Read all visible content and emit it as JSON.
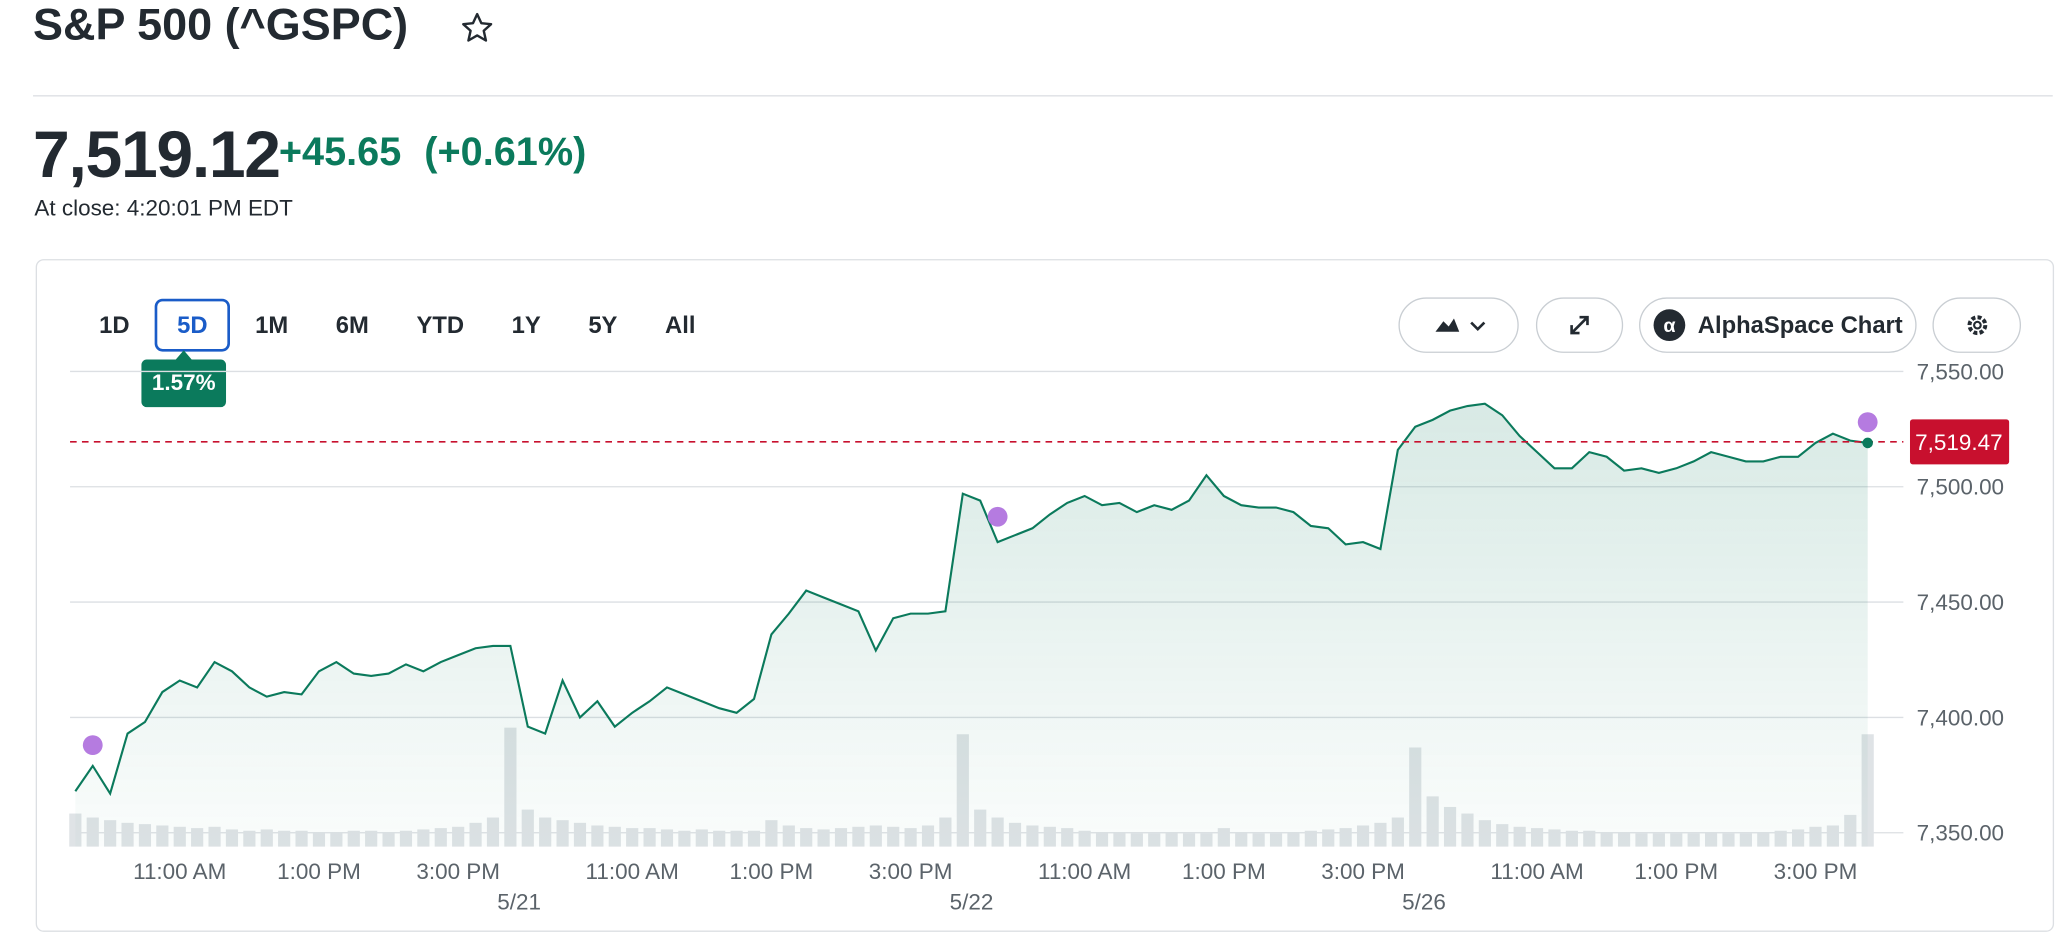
{
  "header": {
    "title": "S&P 500 (^GSPC)",
    "price": "7,519.12",
    "change": "+45.65",
    "change_percent": "(+0.61%)",
    "market_status": "At close: 4:20:01 PM EDT"
  },
  "toolbar": {
    "ranges": [
      "1D",
      "5D",
      "1M",
      "6M",
      "YTD",
      "1Y",
      "5Y",
      "All"
    ],
    "selected_range": 1,
    "range_change": "1.57%",
    "chart_button": "AlphaSpace Chart"
  },
  "chart_data": {
    "type": "area",
    "color": "#0b7a5c",
    "volume_color": "#dfe3e6",
    "grid": true,
    "xlim": [
      0,
      103
    ],
    "ylim": [
      7344,
      7550
    ],
    "yticks": [
      {
        "value": 7350,
        "label": "7,350.00"
      },
      {
        "value": 7400,
        "label": "7,400.00"
      },
      {
        "value": 7450,
        "label": "7,450.00"
      },
      {
        "value": 7500,
        "label": "7,500.00"
      },
      {
        "value": 7550,
        "label": "7,550.00"
      }
    ],
    "xticks": [
      {
        "value": 6,
        "label": "11:00 AM"
      },
      {
        "value": 14,
        "label": "1:00 PM"
      },
      {
        "value": 22,
        "label": "3:00 PM"
      },
      {
        "value": 32,
        "label": "11:00 AM"
      },
      {
        "value": 40,
        "label": "1:00 PM"
      },
      {
        "value": 48,
        "label": "3:00 PM"
      },
      {
        "value": 58,
        "label": "11:00 AM"
      },
      {
        "value": 66,
        "label": "1:00 PM"
      },
      {
        "value": 74,
        "label": "3:00 PM"
      },
      {
        "value": 84,
        "label": "11:00 AM"
      },
      {
        "value": 92,
        "label": "1:00 PM"
      },
      {
        "value": 100,
        "label": "3:00 PM"
      }
    ],
    "date_ticks": [
      {
        "value": 25.5,
        "label": "5/21"
      },
      {
        "value": 51.5,
        "label": "5/22"
      },
      {
        "value": 77.5,
        "label": "5/26"
      }
    ],
    "values": [
      7368,
      7379,
      7367,
      7393,
      7398,
      7411,
      7416,
      7413,
      7424,
      7420,
      7413,
      7409,
      7411,
      7410,
      7420,
      7424,
      7419,
      7418,
      7419,
      7423,
      7420,
      7424,
      7427,
      7430,
      7431,
      7431,
      7396,
      7393,
      7416,
      7400,
      7407,
      7396,
      7402,
      7407,
      7413,
      7410,
      7407,
      7404,
      7402,
      7408,
      7436,
      7445,
      7455,
      7452,
      7449,
      7446,
      7429,
      7443,
      7445,
      7445,
      7446,
      7497,
      7494,
      7476,
      7479,
      7482,
      7488,
      7493,
      7496,
      7492,
      7493,
      7489,
      7492,
      7490,
      7494,
      7505,
      7496,
      7492,
      7491,
      7491,
      7489,
      7483,
      7482,
      7475,
      7476,
      7473,
      7516,
      7526,
      7529,
      7533,
      7535,
      7536,
      7531,
      7522,
      7515,
      7508,
      7508,
      7515,
      7513,
      7507,
      7508,
      7506,
      7508,
      7511,
      7515,
      7513,
      7511,
      7511,
      7513,
      7513,
      7519,
      7523,
      7520,
      7519
    ],
    "volume": [
      25,
      22,
      20,
      18,
      17,
      16,
      15,
      14,
      15,
      13,
      12,
      13,
      12,
      12,
      11,
      11,
      12,
      12,
      11,
      12,
      13,
      14,
      15,
      18,
      22,
      90,
      28,
      22,
      20,
      18,
      16,
      15,
      14,
      14,
      13,
      12,
      13,
      12,
      12,
      12,
      20,
      16,
      14,
      13,
      14,
      15,
      16,
      15,
      14,
      16,
      22,
      85,
      28,
      22,
      18,
      16,
      15,
      14,
      12,
      11,
      11,
      10,
      10,
      11,
      10,
      10,
      14,
      11,
      10,
      10,
      11,
      12,
      13,
      14,
      16,
      18,
      22,
      75,
      38,
      30,
      25,
      20,
      17,
      15,
      14,
      13,
      12,
      12,
      11,
      11,
      10,
      10,
      10,
      10,
      11,
      10,
      10,
      11,
      12,
      13,
      15,
      16,
      24,
      85
    ],
    "reference_line": {
      "value": 7519.47,
      "label": "7,519.47",
      "color": "#c8102e"
    },
    "events": [
      {
        "x": 1,
        "y": 7388
      },
      {
        "x": 53,
        "y": 7487
      },
      {
        "x": 103,
        "y": 7528
      }
    ],
    "event_color": "#b57be0"
  }
}
